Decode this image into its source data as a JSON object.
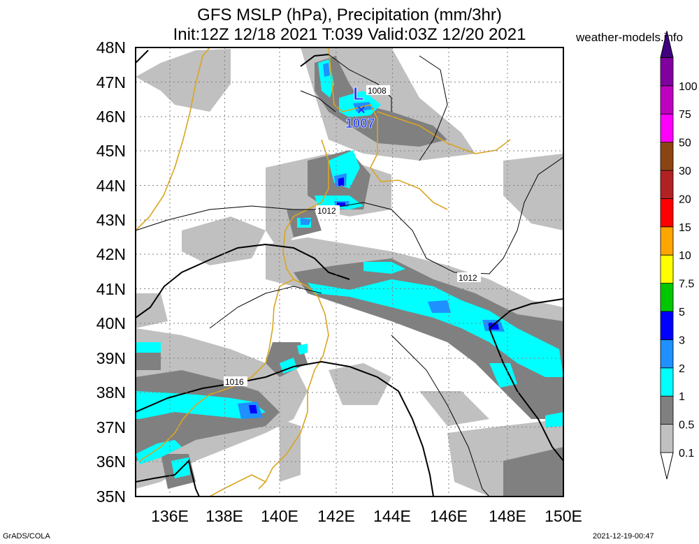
{
  "header": {
    "title_line1": "GFS MSLP (hPa), Precipitation (mm/3hr)",
    "title_line2": "Init:12Z 12/18 2021 T:039 Valid:03Z 12/20 2021",
    "site": "weather-models.info"
  },
  "footer": {
    "left": "GrADS/COLA",
    "right": "2021-12-19-00:47"
  },
  "map": {
    "lat_labels": [
      "48N",
      "47N",
      "46N",
      "45N",
      "44N",
      "43N",
      "42N",
      "41N",
      "40N",
      "39N",
      "38N",
      "37N",
      "36N",
      "35N"
    ],
    "lon_labels": [
      "136E",
      "138E",
      "140E",
      "142E",
      "144E",
      "146E",
      "148E",
      "150E"
    ],
    "isobar_labels": [
      "1008",
      "1012",
      "1012",
      "1016"
    ],
    "low": {
      "symbol": "L",
      "marker": "×",
      "value": "1007"
    }
  },
  "colorbar": {
    "levels": [
      {
        "label": "0.1",
        "color": "#c0c0c0"
      },
      {
        "label": "0.5",
        "color": "#808080"
      },
      {
        "label": "1",
        "color": "#00ffff"
      },
      {
        "label": "2",
        "color": "#1e90ff"
      },
      {
        "label": "3",
        "color": "#0000ff"
      },
      {
        "label": "5",
        "color": "#00c800"
      },
      {
        "label": "7.5",
        "color": "#ffff00"
      },
      {
        "label": "10",
        "color": "#ffa500"
      },
      {
        "label": "15",
        "color": "#ff0000"
      },
      {
        "label": "20",
        "color": "#b22222"
      },
      {
        "label": "30",
        "color": "#8b4513"
      },
      {
        "label": "50",
        "color": "#ff00ff"
      },
      {
        "label": "75",
        "color": "#c000c0"
      },
      {
        "label": "100",
        "color": "#8000a0"
      }
    ],
    "top_color": "#400080"
  }
}
